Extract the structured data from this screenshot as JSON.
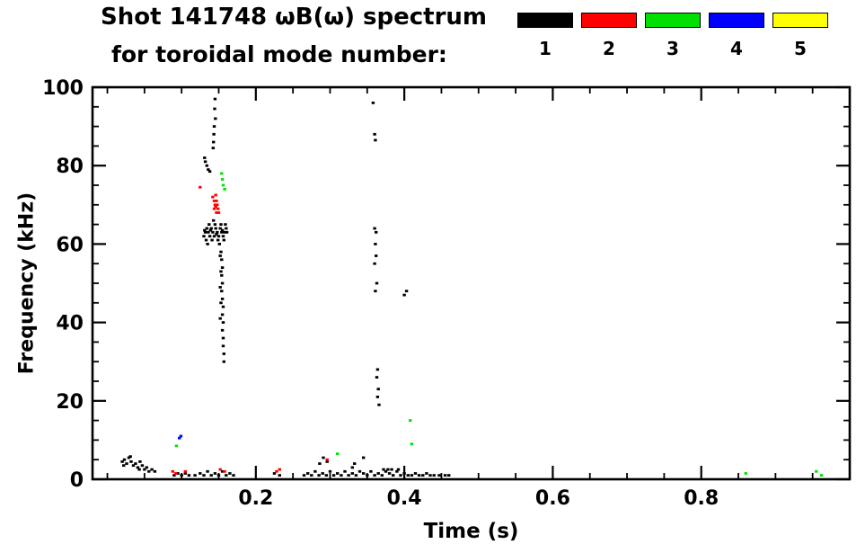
{
  "header": {
    "line1": "Shot 141748 ωB(ω) spectrum",
    "line2": "for toroidal mode number:"
  },
  "legend": {
    "items": [
      {
        "label": "1",
        "color": "#000000"
      },
      {
        "label": "2",
        "color": "#ff0000"
      },
      {
        "label": "3",
        "color": "#00e000"
      },
      {
        "label": "4",
        "color": "#0000ff"
      },
      {
        "label": "5",
        "color": "#ffff00"
      }
    ]
  },
  "axes": {
    "xlabel": "Time (s)",
    "ylabel": "Frequency (kHz)"
  },
  "chart_data": {
    "type": "scatter",
    "title": "Shot 141748 ωB(ω) spectrum for toroidal mode number:",
    "xlabel": "Time (s)",
    "ylabel": "Frequency (kHz)",
    "xlim": [
      -0.02,
      1.0
    ],
    "ylim": [
      0,
      100
    ],
    "grid": false,
    "legend_position": "top-right",
    "x_major_ticks": [
      0.2,
      0.4,
      0.6,
      0.8
    ],
    "x_tick_labels": [
      "0.2",
      "0.4",
      "0.6",
      "0.8"
    ],
    "x_minor_step": 0.05,
    "y_major_ticks": [
      0,
      20,
      40,
      60,
      80,
      100
    ],
    "y_tick_labels": [
      "0",
      "20",
      "40",
      "60",
      "80",
      "100"
    ],
    "y_minor_step": 5,
    "series": [
      {
        "name": "n=1",
        "color": "#000000",
        "points": [
          [
            0.02,
            4.5
          ],
          [
            0.023,
            5
          ],
          [
            0.026,
            4
          ],
          [
            0.029,
            5.5
          ],
          [
            0.032,
            4.5
          ],
          [
            0.035,
            3.5
          ],
          [
            0.038,
            4
          ],
          [
            0.041,
            3
          ],
          [
            0.044,
            4.5
          ],
          [
            0.047,
            3.5
          ],
          [
            0.05,
            2.5
          ],
          [
            0.053,
            3
          ],
          [
            0.056,
            2
          ],
          [
            0.06,
            2.5
          ],
          [
            0.064,
            2
          ],
          [
            0.022,
            3.5
          ],
          [
            0.031,
            5.8
          ],
          [
            0.043,
            2.5
          ],
          [
            0.09,
            1
          ],
          [
            0.095,
            1.5
          ],
          [
            0.1,
            1
          ],
          [
            0.105,
            1.5
          ],
          [
            0.11,
            1
          ],
          [
            0.118,
            1
          ],
          [
            0.125,
            1.5
          ],
          [
            0.13,
            1
          ],
          [
            0.135,
            2
          ],
          [
            0.14,
            1
          ],
          [
            0.145,
            1.5
          ],
          [
            0.15,
            1
          ],
          [
            0.155,
            2
          ],
          [
            0.16,
            1
          ],
          [
            0.165,
            1.5
          ],
          [
            0.17,
            1
          ],
          [
            0.145,
            97
          ],
          [
            0.1445,
            94.5
          ],
          [
            0.1455,
            92
          ],
          [
            0.144,
            90
          ],
          [
            0.1435,
            88
          ],
          [
            0.143,
            86
          ],
          [
            0.1425,
            84.5
          ],
          [
            0.131,
            82
          ],
          [
            0.132,
            81
          ],
          [
            0.134,
            80
          ],
          [
            0.136,
            79
          ],
          [
            0.138,
            78.5
          ],
          [
            0.13,
            62
          ],
          [
            0.132,
            63
          ],
          [
            0.134,
            64
          ],
          [
            0.136,
            63
          ],
          [
            0.138,
            62
          ],
          [
            0.14,
            64
          ],
          [
            0.142,
            63
          ],
          [
            0.144,
            62
          ],
          [
            0.146,
            64
          ],
          [
            0.148,
            63
          ],
          [
            0.15,
            62
          ],
          [
            0.152,
            64
          ],
          [
            0.154,
            63
          ],
          [
            0.156,
            62
          ],
          [
            0.158,
            63
          ],
          [
            0.16,
            64
          ],
          [
            0.133,
            61
          ],
          [
            0.137,
            65
          ],
          [
            0.141,
            61
          ],
          [
            0.145,
            65
          ],
          [
            0.149,
            61
          ],
          [
            0.153,
            65
          ],
          [
            0.157,
            61
          ],
          [
            0.161,
            63
          ],
          [
            0.135,
            60
          ],
          [
            0.143,
            66
          ],
          [
            0.151,
            60
          ],
          [
            0.159,
            65
          ],
          [
            0.139,
            63.5
          ],
          [
            0.147,
            62.5
          ],
          [
            0.155,
            63.5
          ],
          [
            0.131,
            63.5
          ],
          [
            0.153,
            58
          ],
          [
            0.154,
            56
          ],
          [
            0.155,
            54
          ],
          [
            0.154,
            52
          ],
          [
            0.155,
            50
          ],
          [
            0.154,
            48
          ],
          [
            0.155,
            46
          ],
          [
            0.156,
            44
          ],
          [
            0.155,
            42
          ],
          [
            0.156,
            40
          ],
          [
            0.155,
            38
          ],
          [
            0.156,
            36
          ],
          [
            0.156,
            34
          ],
          [
            0.157,
            32
          ],
          [
            0.157,
            30
          ],
          [
            0.152,
            57
          ],
          [
            0.153,
            53
          ],
          [
            0.152,
            49
          ],
          [
            0.153,
            45
          ],
          [
            0.152,
            41
          ],
          [
            0.358,
            96
          ],
          [
            0.36,
            88
          ],
          [
            0.361,
            86.5
          ],
          [
            0.36,
            64
          ],
          [
            0.362,
            63
          ],
          [
            0.361,
            60
          ],
          [
            0.362,
            57
          ],
          [
            0.36,
            55
          ],
          [
            0.363,
            50
          ],
          [
            0.361,
            48
          ],
          [
            0.364,
            28
          ],
          [
            0.363,
            26
          ],
          [
            0.365,
            23
          ],
          [
            0.364,
            21
          ],
          [
            0.366,
            19
          ],
          [
            0.4,
            47
          ],
          [
            0.403,
            48
          ],
          [
            0.225,
            1.5
          ],
          [
            0.232,
            1
          ],
          [
            0.265,
            1
          ],
          [
            0.27,
            1.5
          ],
          [
            0.275,
            1
          ],
          [
            0.28,
            2
          ],
          [
            0.285,
            1
          ],
          [
            0.29,
            1.5
          ],
          [
            0.295,
            1
          ],
          [
            0.3,
            2
          ],
          [
            0.305,
            1
          ],
          [
            0.31,
            1.5
          ],
          [
            0.315,
            1
          ],
          [
            0.32,
            2
          ],
          [
            0.325,
            1
          ],
          [
            0.33,
            1.5
          ],
          [
            0.335,
            1
          ],
          [
            0.34,
            2
          ],
          [
            0.345,
            1.5
          ],
          [
            0.35,
            1
          ],
          [
            0.355,
            2
          ],
          [
            0.36,
            1
          ],
          [
            0.365,
            1.5
          ],
          [
            0.37,
            1
          ],
          [
            0.375,
            2
          ],
          [
            0.38,
            1.5
          ],
          [
            0.385,
            1
          ],
          [
            0.39,
            2
          ],
          [
            0.395,
            1
          ],
          [
            0.4,
            1.5
          ],
          [
            0.405,
            1
          ],
          [
            0.41,
            1
          ],
          [
            0.415,
            1.5
          ],
          [
            0.42,
            1
          ],
          [
            0.425,
            1
          ],
          [
            0.43,
            1.5
          ],
          [
            0.435,
            1
          ],
          [
            0.44,
            1
          ],
          [
            0.447,
            1
          ],
          [
            0.455,
            1
          ],
          [
            0.46,
            1
          ],
          [
            0.286,
            4
          ],
          [
            0.291,
            5.5
          ],
          [
            0.296,
            4.5
          ],
          [
            0.33,
            3
          ],
          [
            0.333,
            4
          ],
          [
            0.345,
            5.5
          ],
          [
            0.372,
            2.5
          ],
          [
            0.378,
            2.5
          ],
          [
            0.383,
            2.5
          ],
          [
            0.392,
            2.5
          ]
        ]
      },
      {
        "name": "n=2",
        "color": "#ff0000",
        "points": [
          [
            0.125,
            74.5
          ],
          [
            0.142,
            72
          ],
          [
            0.144,
            71
          ],
          [
            0.145,
            70
          ],
          [
            0.146,
            69.5
          ],
          [
            0.147,
            71
          ],
          [
            0.148,
            70
          ],
          [
            0.149,
            69
          ],
          [
            0.15,
            68
          ],
          [
            0.146,
            72.5
          ],
          [
            0.144,
            69
          ],
          [
            0.147,
            68
          ],
          [
            0.088,
            2
          ],
          [
            0.092,
            1.5
          ],
          [
            0.105,
            2
          ],
          [
            0.152,
            2.5
          ],
          [
            0.158,
            2
          ],
          [
            0.228,
            2
          ],
          [
            0.232,
            2.5
          ],
          [
            0.296,
            5
          ]
        ]
      },
      {
        "name": "n=3",
        "color": "#00e000",
        "points": [
          [
            0.154,
            78
          ],
          [
            0.155,
            76.5
          ],
          [
            0.156,
            75
          ],
          [
            0.158,
            74
          ],
          [
            0.093,
            8.5
          ],
          [
            0.408,
            15
          ],
          [
            0.41,
            9
          ],
          [
            0.31,
            6.5
          ],
          [
            0.86,
            1.5
          ],
          [
            0.955,
            2
          ],
          [
            0.962,
            1
          ]
        ]
      },
      {
        "name": "n=4",
        "color": "#0000ff",
        "points": [
          [
            0.097,
            10.5
          ],
          [
            0.099,
            11
          ]
        ]
      },
      {
        "name": "n=5",
        "color": "#ffff00",
        "points": []
      }
    ]
  }
}
